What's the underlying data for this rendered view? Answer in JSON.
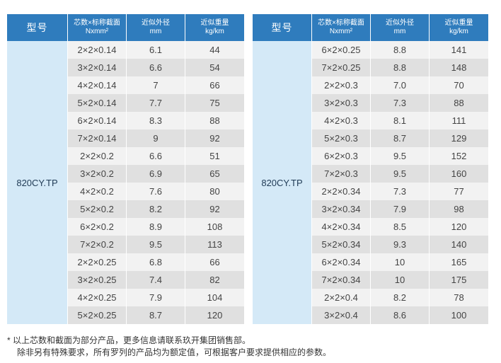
{
  "headers": {
    "model": "型号",
    "cores_line1": "芯数×标称截面",
    "cores_line2": "Nxmm²",
    "diameter_line1": "近似外径",
    "diameter_line2": "mm",
    "weight_line1": "近似重量",
    "weight_line2": "kg/km"
  },
  "left_table": {
    "model": "820CY.TP",
    "rows": [
      {
        "spec": "2×2×0.14",
        "diameter": "6.1",
        "weight": "44"
      },
      {
        "spec": "3×2×0.14",
        "diameter": "6.6",
        "weight": "54"
      },
      {
        "spec": "4×2×0.14",
        "diameter": "7",
        "weight": "66"
      },
      {
        "spec": "5×2×0.14",
        "diameter": "7.7",
        "weight": "75"
      },
      {
        "spec": "6×2×0.14",
        "diameter": "8.3",
        "weight": "88"
      },
      {
        "spec": "7×2×0.14",
        "diameter": "9",
        "weight": "92"
      },
      {
        "spec": "2×2×0.2",
        "diameter": "6.6",
        "weight": "51"
      },
      {
        "spec": "3×2×0.2",
        "diameter": "6.9",
        "weight": "65"
      },
      {
        "spec": "4×2×0.2",
        "diameter": "7.6",
        "weight": "80"
      },
      {
        "spec": "5×2×0.2",
        "diameter": "8.2",
        "weight": "92"
      },
      {
        "spec": "6×2×0.2",
        "diameter": "8.9",
        "weight": "108"
      },
      {
        "spec": "7×2×0.2",
        "diameter": "9.5",
        "weight": "113"
      },
      {
        "spec": "2×2×0.25",
        "diameter": "6.8",
        "weight": "66"
      },
      {
        "spec": "3×2×0.25",
        "diameter": "7.4",
        "weight": "82"
      },
      {
        "spec": "4×2×0.25",
        "diameter": "7.9",
        "weight": "104"
      },
      {
        "spec": "5×2×0.25",
        "diameter": "8.7",
        "weight": "120"
      }
    ]
  },
  "right_table": {
    "model": "820CY.TP",
    "rows": [
      {
        "spec": "6×2×0.25",
        "diameter": "8.8",
        "weight": "141"
      },
      {
        "spec": "7×2×0.25",
        "diameter": "8.8",
        "weight": "148"
      },
      {
        "spec": "2×2×0.3",
        "diameter": "7.0",
        "weight": "70"
      },
      {
        "spec": "3×2×0.3",
        "diameter": "7.3",
        "weight": "88"
      },
      {
        "spec": "4×2×0.3",
        "diameter": "8.1",
        "weight": "111"
      },
      {
        "spec": "5×2×0.3",
        "diameter": "8.7",
        "weight": "129"
      },
      {
        "spec": "6×2×0.3",
        "diameter": "9.5",
        "weight": "152"
      },
      {
        "spec": "7×2×0.3",
        "diameter": "9.5",
        "weight": "160"
      },
      {
        "spec": "2×2×0.34",
        "diameter": "7.3",
        "weight": "77"
      },
      {
        "spec": "3×2×0.34",
        "diameter": "7.9",
        "weight": "98"
      },
      {
        "spec": "4×2×0.34",
        "diameter": "8.5",
        "weight": "120"
      },
      {
        "spec": "5×2×0.34",
        "diameter": "9.3",
        "weight": "140"
      },
      {
        "spec": "6×2×0.34",
        "diameter": "10",
        "weight": "165"
      },
      {
        "spec": "7×2×0.34",
        "diameter": "10",
        "weight": "175"
      },
      {
        "spec": "2×2×0.4",
        "diameter": "8.2",
        "weight": "78"
      },
      {
        "spec": "3×2×0.4",
        "diameter": "8.6",
        "weight": "100"
      }
    ]
  },
  "footnotes": {
    "line1": "* 以上芯数和截面为部分产品，更多信息请联系玖开集团销售部。",
    "line2": "除非另有特殊要求，所有罗列的产品均为额定值，可根据客户要求提供相应的参数。"
  },
  "colors": {
    "header_bg": "#2f7cbd",
    "model_cell_bg": "#d4e9f7",
    "row_light": "#f2f2f2",
    "row_dark": "#e0e0e0"
  }
}
